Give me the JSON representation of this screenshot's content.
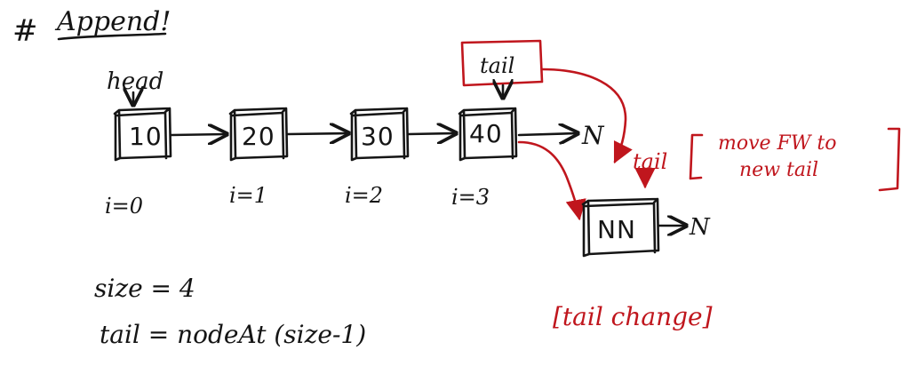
{
  "heading": {
    "hash": "#",
    "title": "Append!"
  },
  "list": {
    "head_label": "head",
    "tail_label": "tail",
    "nodes": [
      {
        "value": "10",
        "index_label": "i=0"
      },
      {
        "value": "20",
        "index_label": "i=1"
      },
      {
        "value": "30",
        "index_label": "i=2"
      },
      {
        "value": "40",
        "index_label": "i=3"
      }
    ],
    "null_label": "N"
  },
  "new_node": {
    "value": "NN",
    "null_label": "N",
    "new_tail_label": "tail",
    "note": "[move FW to new tail]",
    "note_line1": "move FW to",
    "note_line2": "new tail"
  },
  "code": {
    "line1": "size = 4",
    "line2": "tail = nodeAt (size-1)"
  },
  "caption": "[tail change]",
  "colors": {
    "ink": "#151515",
    "red": "#c0161d"
  }
}
